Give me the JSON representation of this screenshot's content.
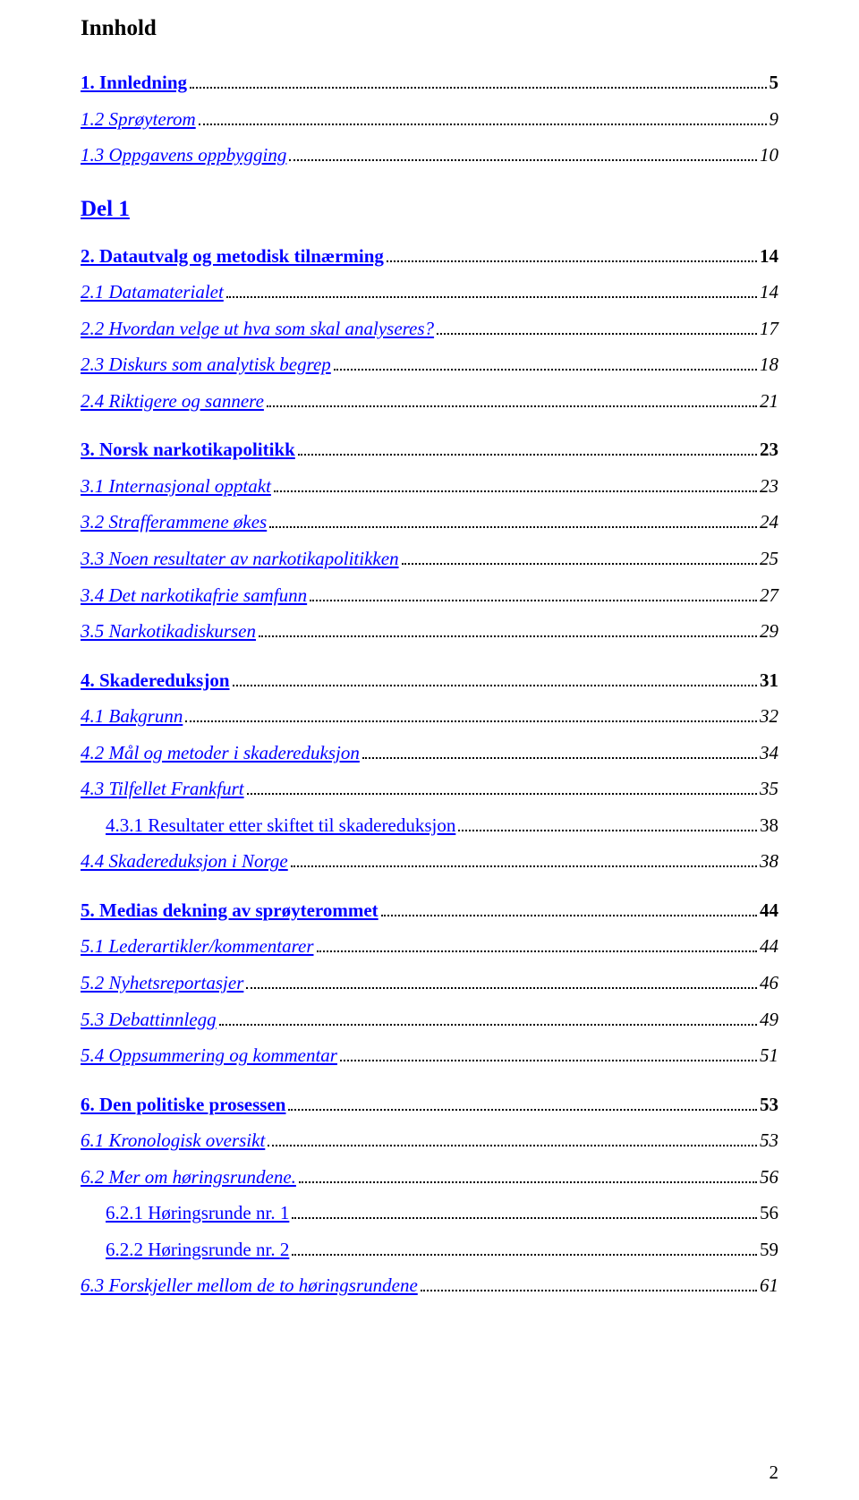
{
  "title": "Innhold",
  "part_heading": "Del 1",
  "footer_page": "2",
  "toc": [
    {
      "label": "1. Innledning",
      "page": "5",
      "style": "bold link",
      "gap": false,
      "indent": 0
    },
    {
      "label": "1.2 Sprøyterom",
      "page": "9",
      "style": "italic link",
      "gap": false,
      "indent": 0
    },
    {
      "label": "1.3 Oppgavens oppbygging",
      "page": "10",
      "style": "italic link",
      "gap": false,
      "indent": 0
    },
    {
      "part": true
    },
    {
      "label": "2. Datautvalg og metodisk tilnærming",
      "page": "14",
      "style": "bold link",
      "gap": false,
      "indent": 0
    },
    {
      "label": "2.1 Datamaterialet",
      "page": "14",
      "style": "italic link",
      "gap": false,
      "indent": 0
    },
    {
      "label": "2.2 Hvordan velge ut hva som skal analyseres?",
      "page": "17",
      "style": "italic link",
      "gap": false,
      "indent": 0
    },
    {
      "label": "2.3 Diskurs som analytisk begrep",
      "page": "18",
      "style": "italic link",
      "gap": false,
      "indent": 0
    },
    {
      "label": "2.4 Riktigere og sannere",
      "page": "21",
      "style": "italic link",
      "gap": false,
      "indent": 0
    },
    {
      "label": "3. Norsk narkotikapolitikk",
      "page": "23",
      "style": "bold link",
      "gap": true,
      "indent": 0
    },
    {
      "label": "3.1 Internasjonal opptakt",
      "page": "23",
      "style": "italic link",
      "gap": false,
      "indent": 0
    },
    {
      "label": "3.2 Strafferammene økes",
      "page": "24",
      "style": "italic link",
      "gap": false,
      "indent": 0
    },
    {
      "label": "3.3 Noen resultater av narkotikapolitikken",
      "page": "25",
      "style": "italic link",
      "gap": false,
      "indent": 0
    },
    {
      "label": "3.4 Det narkotikafrie samfunn",
      "page": "27",
      "style": "italic link",
      "gap": false,
      "indent": 0
    },
    {
      "label": "3.5 Narkotikadiskursen",
      "page": "29",
      "style": "italic link",
      "gap": false,
      "indent": 0
    },
    {
      "label": "4. Skadereduksjon",
      "page": "31",
      "style": "bold link",
      "gap": true,
      "indent": 0
    },
    {
      "label": "4.1 Bakgrunn",
      "page": "32",
      "style": "italic link",
      "gap": false,
      "indent": 0
    },
    {
      "label": "4.2 Mål og metoder i skadereduksjon",
      "page": "34",
      "style": "italic link",
      "gap": false,
      "indent": 0
    },
    {
      "label": "4.3 Tilfellet Frankfurt",
      "page": "35",
      "style": "italic link",
      "gap": false,
      "indent": 0
    },
    {
      "label": "4.3.1 Resultater etter skiftet til skadereduksjon",
      "page": "38",
      "style": "link",
      "gap": false,
      "indent": 1
    },
    {
      "label": "4.4 Skadereduksjon i Norge",
      "page": "38",
      "style": "italic link",
      "gap": false,
      "indent": 0
    },
    {
      "label": "5. Medias dekning av sprøyterommet",
      "page": "44",
      "style": "bold link",
      "gap": true,
      "indent": 0
    },
    {
      "label": "5.1 Lederartikler/kommentarer",
      "page": "44",
      "style": "italic link",
      "gap": false,
      "indent": 0
    },
    {
      "label": "5.2 Nyhetsreportasjer",
      "page": "46",
      "style": "italic link",
      "gap": false,
      "indent": 0
    },
    {
      "label": "5.3 Debattinnlegg",
      "page": "49",
      "style": "italic link",
      "gap": false,
      "indent": 0
    },
    {
      "label": "5.4 Oppsummering og kommentar",
      "page": "51",
      "style": "italic link",
      "gap": false,
      "indent": 0
    },
    {
      "label": "6. Den politiske prosessen",
      "page": "53",
      "style": "bold link",
      "gap": true,
      "indent": 0
    },
    {
      "label": "6.1 Kronologisk oversikt",
      "page": "53",
      "style": "italic link",
      "gap": false,
      "indent": 0
    },
    {
      "label": "6.2 Mer om høringsrundene.",
      "page": "56",
      "style": "italic link",
      "gap": false,
      "indent": 0
    },
    {
      "label": "6.2.1 Høringsrunde nr. 1",
      "page": "56",
      "style": "link",
      "gap": false,
      "indent": 1
    },
    {
      "label": "6.2.2 Høringsrunde nr. 2",
      "page": "59",
      "style": "link",
      "gap": false,
      "indent": 1
    },
    {
      "label": "6.3 Forskjeller mellom de to høringsrundene",
      "page": "61",
      "style": "italic link",
      "gap": false,
      "indent": 0
    }
  ]
}
